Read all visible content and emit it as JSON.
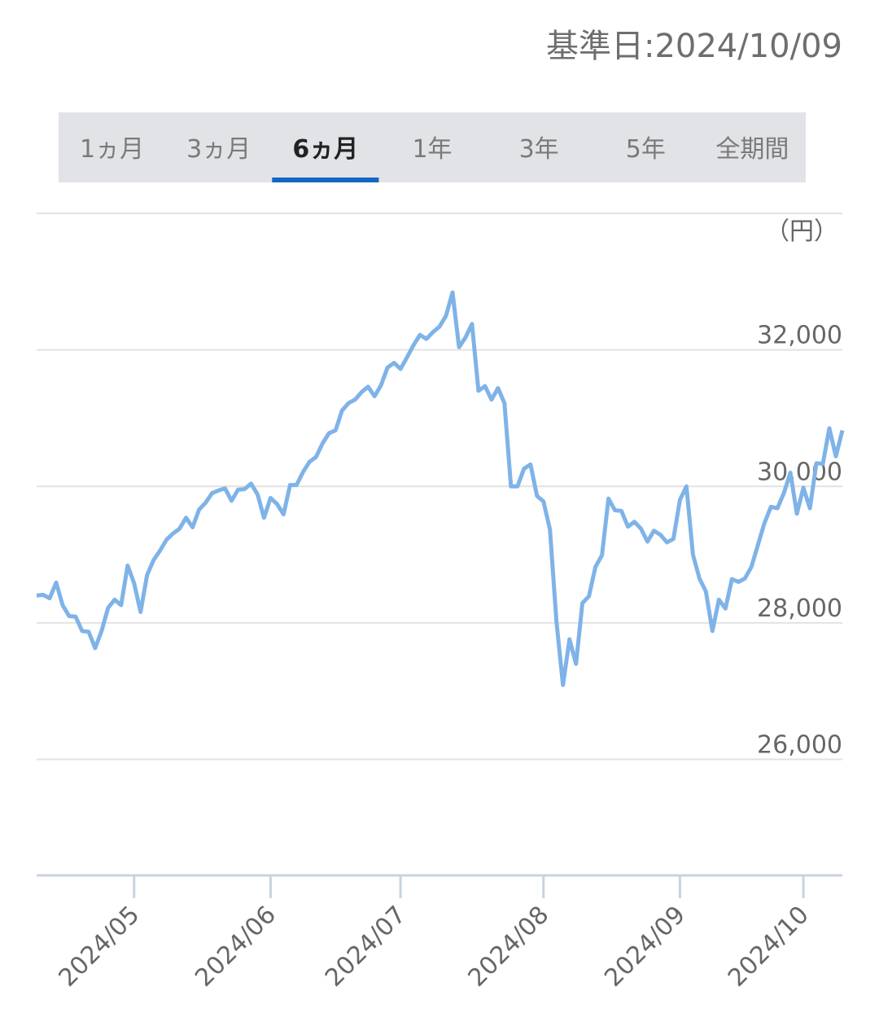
{
  "header": {
    "base_date": "基準日:2024/10/09"
  },
  "tabs": {
    "items": [
      "1ヵ月",
      "3ヵ月",
      "6ヵ月",
      "1年",
      "3年",
      "5年",
      "全期間"
    ],
    "active": 2
  },
  "chart_data": {
    "type": "line",
    "unit_label": "（円）",
    "categories": [
      null,
      null,
      null,
      null,
      null,
      null,
      null,
      null,
      null,
      null,
      null,
      null,
      null,
      null,
      null,
      "2024/05",
      null,
      null,
      null,
      null,
      null,
      null,
      null,
      null,
      null,
      null,
      null,
      null,
      null,
      null,
      null,
      null,
      null,
      null,
      null,
      null,
      "2024/06",
      null,
      null,
      null,
      null,
      null,
      null,
      null,
      null,
      null,
      null,
      null,
      null,
      null,
      null,
      null,
      null,
      null,
      null,
      null,
      "2024/07",
      null,
      null,
      null,
      null,
      null,
      null,
      null,
      null,
      null,
      null,
      null,
      null,
      null,
      null,
      null,
      null,
      null,
      null,
      null,
      null,
      null,
      "2024/08",
      null,
      null,
      null,
      null,
      null,
      null,
      null,
      null,
      null,
      null,
      null,
      null,
      null,
      null,
      null,
      null,
      null,
      null,
      null,
      null,
      "2024/09",
      null,
      null,
      null,
      null,
      null,
      null,
      null,
      null,
      null,
      null,
      null,
      null,
      null,
      null,
      null,
      null,
      null,
      null,
      "2024/10",
      null,
      null,
      null,
      null,
      null,
      null
    ],
    "series": [
      {
        "name": null,
        "color": "#7fb3e8",
        "values": [
          28400,
          28410,
          28360,
          28590,
          28260,
          28100,
          28090,
          27880,
          27870,
          27630,
          27880,
          28220,
          28340,
          28260,
          28840,
          28580,
          28160,
          28700,
          28920,
          29060,
          29220,
          29310,
          29380,
          29540,
          29400,
          29660,
          29760,
          29900,
          29940,
          29970,
          29790,
          29950,
          29960,
          30040,
          29880,
          29540,
          29830,
          29740,
          29590,
          30020,
          30020,
          30210,
          30360,
          30430,
          30630,
          30780,
          30820,
          31110,
          31220,
          31270,
          31380,
          31460,
          31320,
          31480,
          31740,
          31810,
          31720,
          31890,
          32070,
          32220,
          32160,
          32260,
          32340,
          32500,
          32840,
          32040,
          32180,
          32380,
          31400,
          31470,
          31270,
          31440,
          31220,
          30000,
          30000,
          30260,
          30320,
          29860,
          29780,
          29370,
          28020,
          27090,
          27760,
          27400,
          28290,
          28390,
          28820,
          28990,
          29820,
          29650,
          29640,
          29410,
          29480,
          29380,
          29190,
          29350,
          29290,
          29180,
          29230,
          29800,
          30000,
          29000,
          28650,
          28460,
          27880,
          28340,
          28210,
          28640,
          28600,
          28650,
          28820,
          29140,
          29460,
          29700,
          29680,
          29900,
          30200,
          29600,
          29980,
          29680,
          30340,
          30330,
          30850,
          30440,
          30820
        ]
      }
    ],
    "ylim": [
      24300,
      34000
    ],
    "yticks": [
      {
        "value": 26000,
        "label": "26,000"
      },
      {
        "value": 28000,
        "label": "28,000"
      },
      {
        "value": 30000,
        "label": "30,000"
      },
      {
        "value": 32000,
        "label": "32,000"
      }
    ],
    "grid": true
  }
}
